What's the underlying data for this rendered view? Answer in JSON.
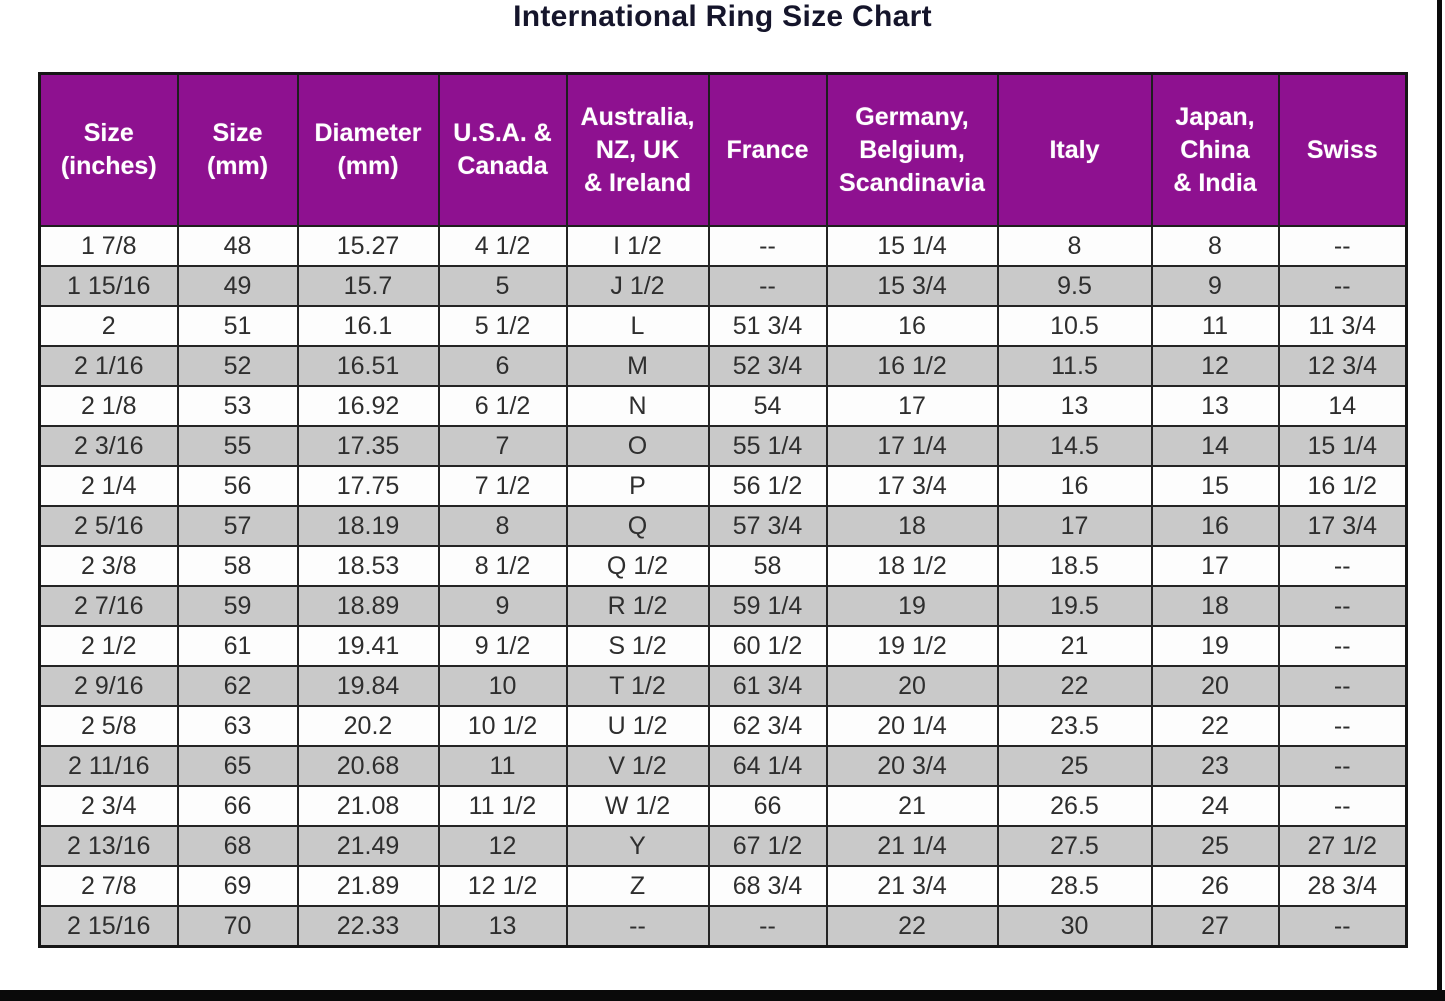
{
  "title": "International Ring Size Chart",
  "chart_data": {
    "type": "table",
    "title": "International Ring Size Chart",
    "columns": [
      "Size\n(inches)",
      "Size\n(mm)",
      "Diameter\n(mm)",
      "U.S.A. &\nCanada",
      "Australia,\nNZ, UK\n& Ireland",
      "France",
      "Germany,\nBelgium,\nScandinavia",
      "Italy",
      "Japan,\nChina\n& India",
      "Swiss"
    ],
    "rows": [
      [
        "1 7/8",
        "48",
        "15.27",
        "4 1/2",
        "I 1/2",
        "--",
        "15 1/4",
        "8",
        "8",
        "--"
      ],
      [
        "1 15/16",
        "49",
        "15.7",
        "5",
        "J 1/2",
        "--",
        "15 3/4",
        "9.5",
        "9",
        "--"
      ],
      [
        "2",
        "51",
        "16.1",
        "5 1/2",
        "L",
        "51 3/4",
        "16",
        "10.5",
        "11",
        "11 3/4"
      ],
      [
        "2 1/16",
        "52",
        "16.51",
        "6",
        "M",
        "52 3/4",
        "16 1/2",
        "11.5",
        "12",
        "12 3/4"
      ],
      [
        "2 1/8",
        "53",
        "16.92",
        "6 1/2",
        "N",
        "54",
        "17",
        "13",
        "13",
        "14"
      ],
      [
        "2 3/16",
        "55",
        "17.35",
        "7",
        "O",
        "55 1/4",
        "17 1/4",
        "14.5",
        "14",
        "15 1/4"
      ],
      [
        "2 1/4",
        "56",
        "17.75",
        "7 1/2",
        "P",
        "56 1/2",
        "17 3/4",
        "16",
        "15",
        "16 1/2"
      ],
      [
        "2 5/16",
        "57",
        "18.19",
        "8",
        "Q",
        "57 3/4",
        "18",
        "17",
        "16",
        "17 3/4"
      ],
      [
        "2 3/8",
        "58",
        "18.53",
        "8 1/2",
        "Q 1/2",
        "58",
        "18 1/2",
        "18.5",
        "17",
        "--"
      ],
      [
        "2 7/16",
        "59",
        "18.89",
        "9",
        "R 1/2",
        "59 1/4",
        "19",
        "19.5",
        "18",
        "--"
      ],
      [
        "2 1/2",
        "61",
        "19.41",
        "9 1/2",
        "S 1/2",
        "60 1/2",
        "19 1/2",
        "21",
        "19",
        "--"
      ],
      [
        "2 9/16",
        "62",
        "19.84",
        "10",
        "T 1/2",
        "61 3/4",
        "20",
        "22",
        "20",
        "--"
      ],
      [
        "2 5/8",
        "63",
        "20.2",
        "10 1/2",
        "U 1/2",
        "62 3/4",
        "20 1/4",
        "23.5",
        "22",
        "--"
      ],
      [
        "2 11/16",
        "65",
        "20.68",
        "11",
        "V 1/2",
        "64 1/4",
        "20 3/4",
        "25",
        "23",
        "--"
      ],
      [
        "2 3/4",
        "66",
        "21.08",
        "11 1/2",
        "W 1/2",
        "66",
        "21",
        "26.5",
        "24",
        "--"
      ],
      [
        "2 13/16",
        "68",
        "21.49",
        "12",
        "Y",
        "67 1/2",
        "21 1/4",
        "27.5",
        "25",
        "27 1/2"
      ],
      [
        "2 7/8",
        "69",
        "21.89",
        "12 1/2",
        "Z",
        "68 3/4",
        "21 3/4",
        "28.5",
        "26",
        "28 3/4"
      ],
      [
        "2 15/16",
        "70",
        "22.33",
        "13",
        "--",
        "--",
        "22",
        "30",
        "27",
        "--"
      ]
    ],
    "layout": {
      "legend": "none",
      "grid": "on",
      "header_position": "top"
    }
  },
  "colors": {
    "header_purple": "#8E1190",
    "header_text": "#FFFFFF",
    "alt_row_gray": "#C9C9C9",
    "row_white": "#FDFDFD",
    "border_dark": "#1E1E1E",
    "title_text": "#15152B",
    "cell_text": "#2E2E2E",
    "edge_strip_black": "#0A0A0A"
  }
}
